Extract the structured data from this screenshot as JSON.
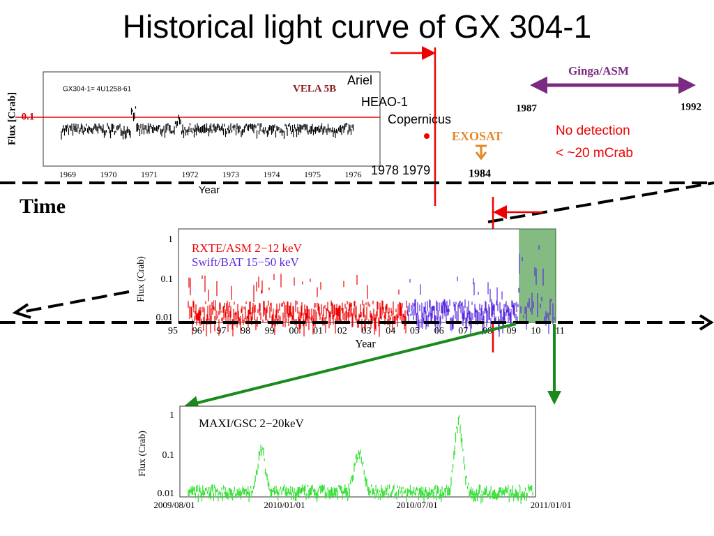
{
  "title": "Historical light curve of GX 304-1",
  "top_panel": {
    "source": "GX304-1= 4U1258-61",
    "instrument": "VELA 5B",
    "y_label": "Flux [Crab]",
    "y_tick": "0.1",
    "x_ticks": [
      "1969",
      "1970",
      "1971",
      "1972",
      "1973",
      "1974",
      "1975",
      "1976"
    ],
    "x_label": "Year"
  },
  "missions": {
    "ariel": "Ariel",
    "heao": "HEAO-1",
    "copernicus": "Copernicus",
    "years_7879": "1978 1979",
    "exosat": "EXOSAT",
    "year_1984": "1984",
    "ginga": "Ginga/ASM",
    "ginga_start": "1987",
    "ginga_end": "1992",
    "no_detection": "No detection",
    "limit": "< ~20 mCrab"
  },
  "time_label": "Time",
  "middle_panel": {
    "legend": [
      "RXTE/ASM 2−12 keV",
      "Swift/BAT 15−50 keV"
    ],
    "y_label": "Flux (Crab)",
    "y_ticks": [
      "1",
      "0.1",
      "0.01"
    ],
    "x_ticks": [
      "95",
      "96",
      "97",
      "98",
      "99",
      "00",
      "01",
      "02",
      "03",
      "04",
      "05",
      "06",
      "07",
      "08",
      "09",
      "10",
      "11"
    ],
    "x_label": "Year"
  },
  "bottom_panel": {
    "legend": "MAXI/GSC 2−20keV",
    "y_label": "Flux (Crab)",
    "y_ticks": [
      "1",
      "0.1",
      "0.01"
    ],
    "x_ticks": [
      "2009/08/01",
      "2010/01/01",
      "2010/07/01",
      "2011/01/01"
    ]
  }
}
